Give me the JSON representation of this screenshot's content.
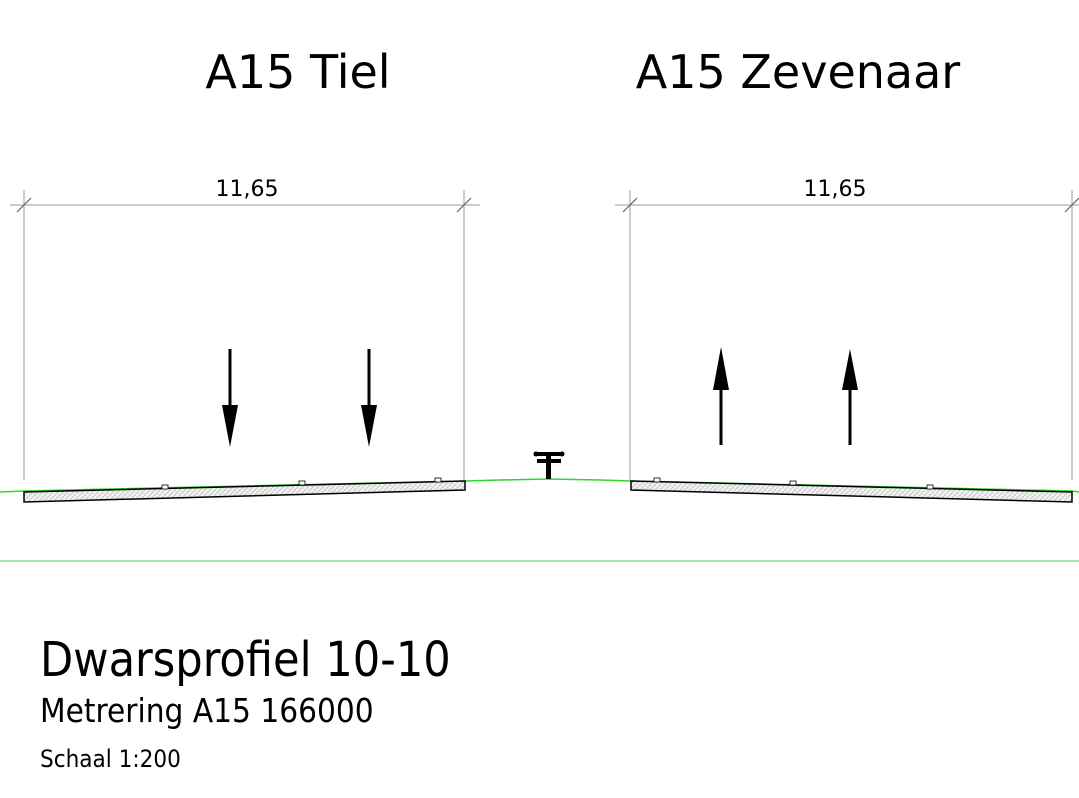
{
  "headings": {
    "left": "A15  Tiel",
    "right": "A15  Zevenaar"
  },
  "dimensions": {
    "left": "11,65",
    "right": "11,65"
  },
  "title_block": {
    "title": "Dwarsprofiel  10-10",
    "subtitle": "Metrering  A15  166000",
    "scale": "Schaal  1:200"
  },
  "lanes": {
    "left_direction": "down",
    "right_direction": "up"
  },
  "colors": {
    "ground_line": "#2bd92b",
    "reference_line": "#4cc94c",
    "dimension_line": "#999999",
    "ink": "#000000"
  }
}
